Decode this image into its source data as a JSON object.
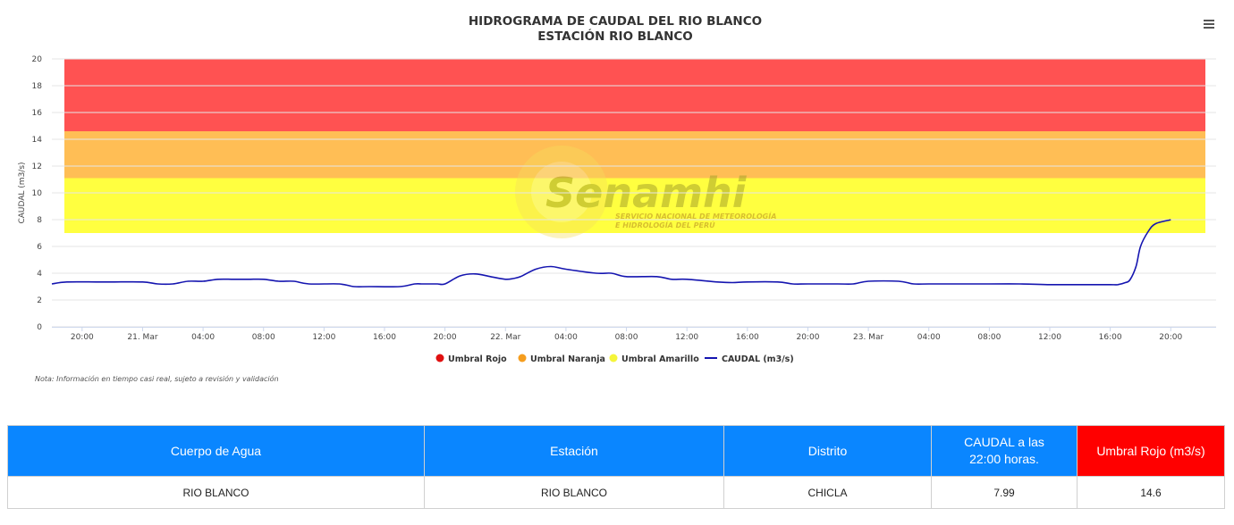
{
  "chart_data": {
    "type": "line",
    "title": "HIDROGRAMA DE CAUDAL DEL RIO BLANCO",
    "subtitle": "ESTACIÓN RIO BLANCO",
    "ylabel": "CAUDAL (m3/s)",
    "ylim": [
      0,
      20
    ],
    "y_ticks": [
      "0",
      "2",
      "4",
      "6",
      "8",
      "10",
      "12",
      "14",
      "16",
      "18",
      "20"
    ],
    "x_ticks": [
      "20:00",
      "21. Mar",
      "04:00",
      "08:00",
      "12:00",
      "16:00",
      "20:00",
      "22. Mar",
      "04:00",
      "08:00",
      "12:00",
      "16:00",
      "20:00",
      "23. Mar",
      "04:00",
      "08:00",
      "12:00",
      "16:00",
      "20:00"
    ],
    "x_range_hours": [
      -2,
      75
    ],
    "grid": true,
    "legend_placement": "bottom-center",
    "bands": [
      {
        "name": "Umbral Rojo",
        "from": 14.6,
        "to": 20,
        "color": "#ff5252"
      },
      {
        "name": "Umbral Naranja",
        "from": 11.1,
        "to": 14.6,
        "color": "#ffbe55"
      },
      {
        "name": "Umbral Amarillo",
        "from": 7.0,
        "to": 11.1,
        "color": "#ffff40"
      }
    ],
    "legend": [
      {
        "name": "Umbral Rojo",
        "color": "#e01010",
        "symbol": "circle"
      },
      {
        "name": "Umbral Naranja",
        "color": "#f59d1e",
        "symbol": "circle"
      },
      {
        "name": "Umbral Amarillo",
        "color": "#f5f53a",
        "symbol": "circle"
      },
      {
        "name": "CAUDAL (m3/s)",
        "color": "#1515b0",
        "symbol": "line"
      }
    ],
    "series": [
      {
        "name": "CAUDAL (m3/s)",
        "color": "#1515b0",
        "x": [
          -2,
          -1,
          1,
          2,
          4,
          5,
          6,
          7,
          8,
          9,
          10,
          11,
          12,
          13,
          14,
          15,
          17,
          18,
          19,
          21,
          22,
          22.5,
          23,
          23.5,
          24,
          25,
          26,
          27,
          28,
          28.5,
          29,
          30,
          31,
          32,
          34,
          35,
          36,
          38,
          39,
          40,
          42,
          43,
          44,
          46,
          47,
          48,
          50,
          51,
          52,
          54,
          55,
          56,
          58,
          59,
          60,
          62,
          64,
          66,
          67,
          68,
          68.5,
          69,
          69.3,
          69.7,
          70,
          70.5,
          71,
          72
        ],
        "y": [
          3.2,
          3.35,
          3.35,
          3.35,
          3.35,
          3.2,
          3.2,
          3.4,
          3.4,
          3.55,
          3.55,
          3.55,
          3.55,
          3.4,
          3.4,
          3.2,
          3.2,
          3.0,
          3.0,
          3.0,
          3.2,
          3.2,
          3.2,
          3.2,
          3.2,
          3.8,
          3.95,
          3.75,
          3.55,
          3.6,
          3.75,
          4.3,
          4.5,
          4.3,
          4.0,
          4.0,
          3.75,
          3.75,
          3.55,
          3.55,
          3.35,
          3.3,
          3.35,
          3.35,
          3.2,
          3.2,
          3.2,
          3.2,
          3.4,
          3.4,
          3.2,
          3.2,
          3.2,
          3.2,
          3.2,
          3.2,
          3.15,
          3.15,
          3.15,
          3.15,
          3.15,
          3.3,
          3.5,
          4.5,
          6.0,
          7.1,
          7.7,
          7.99
        ]
      }
    ],
    "note": "Nota: Información en tiempo casi real, sujeto a revisión y validación",
    "watermark": {
      "brand": "Senamhi",
      "line1": "SERVICIO NACIONAL DE METEOROLOGÍA",
      "line2": "E HIDROLOGÍA DEL PERÚ"
    }
  },
  "table": {
    "headers": {
      "cuerpo": "Cuerpo de Agua",
      "estacion": "Estación",
      "distrito": "Distrito",
      "caudal_l1": "CAUDAL a las",
      "caudal_l2": "22:00 horas.",
      "umbral": "Umbral Rojo (m3/s)"
    },
    "row": {
      "cuerpo": "RIO BLANCO",
      "estacion": "RIO BLANCO",
      "distrito": "CHICLA",
      "caudal": "7.99",
      "umbral": "14.6"
    },
    "colors": {
      "header": "#0a86ff",
      "umbral_header": "#ff0000"
    }
  }
}
